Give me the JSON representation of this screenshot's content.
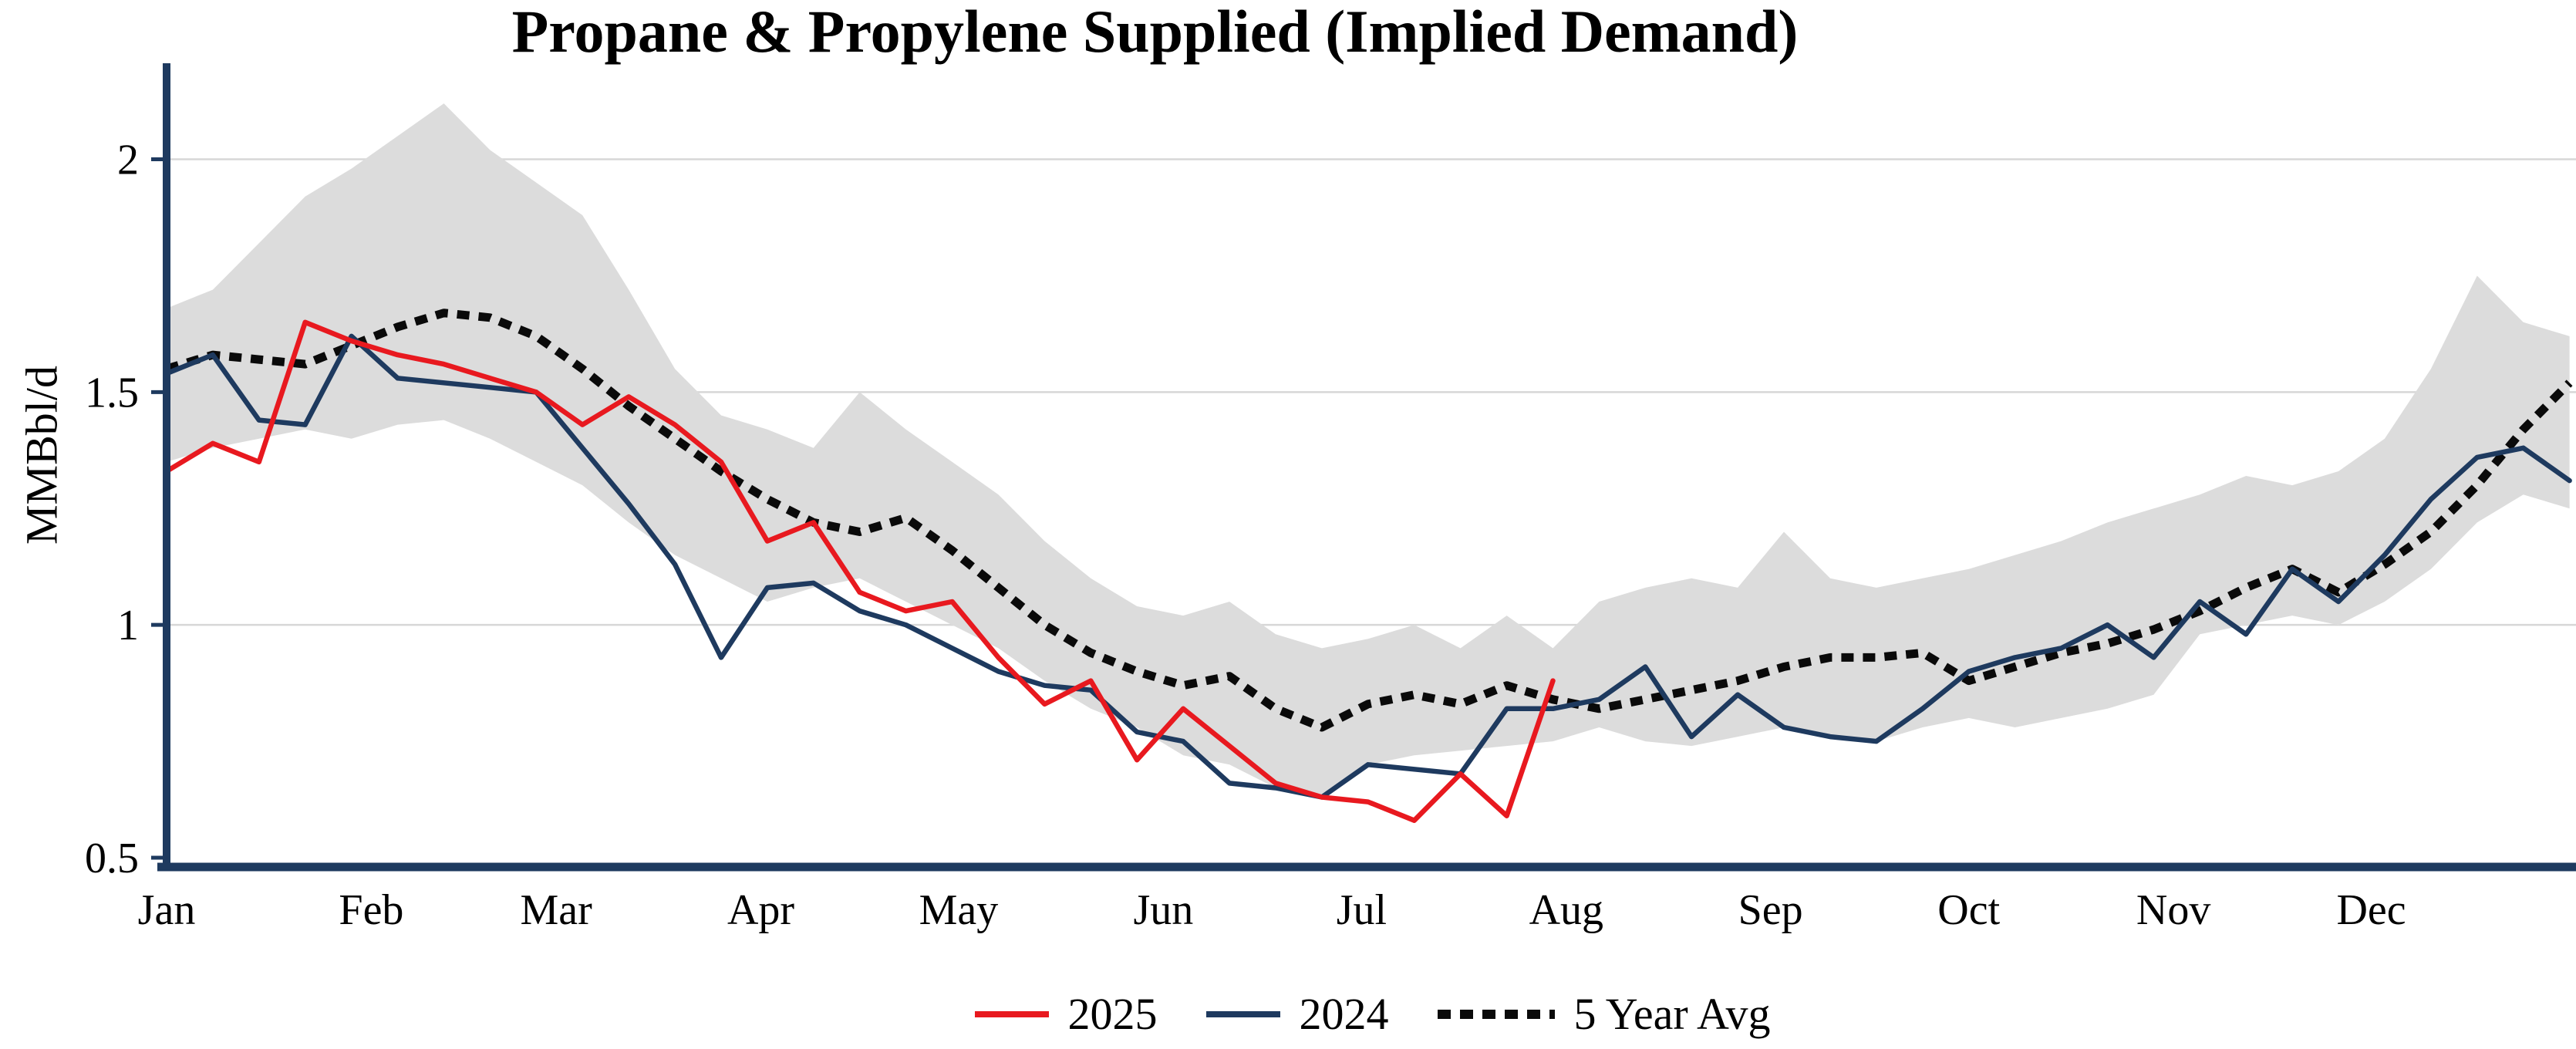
{
  "title": "Propane & Propylene Supplied (Implied Demand)",
  "y_axis": {
    "label": "MMBbl/d"
  },
  "legend": [
    {
      "label": "2025",
      "color": "#e8191f",
      "style": "solid"
    },
    {
      "label": "2024",
      "color": "#1e3a5f",
      "style": "solid"
    },
    {
      "label": "5 Year Avg",
      "color": "#0a0a0a",
      "style": "dotted"
    }
  ],
  "colors": {
    "axis": "#1e3a5f",
    "grid": "#d7d7d7",
    "band": "#dcdcdc",
    "red": "#e8191f",
    "navy": "#1e3a5f",
    "black": "#0a0a0a"
  },
  "chart_data": {
    "type": "line",
    "title": "Propane & Propylene Supplied (Implied Demand)",
    "xlabel": "",
    "ylabel": "MMBbl/d",
    "x_unit": "week_of_year",
    "x_range": [
      0,
      52.14
    ],
    "ylim": [
      0.5,
      2.15
    ],
    "grid": "horizontal",
    "legend_position": "bottom-center",
    "y_ticks": [
      {
        "value": 0.5,
        "label": "0.5"
      },
      {
        "value": 1.0,
        "label": "1"
      },
      {
        "value": 1.5,
        "label": "1.5"
      },
      {
        "value": 2.0,
        "label": "2"
      }
    ],
    "x_ticks": [
      {
        "label": "Jan",
        "week": 0
      },
      {
        "label": "Feb",
        "week": 4.43
      },
      {
        "label": "Mar",
        "week": 8.43
      },
      {
        "label": "Apr",
        "week": 12.86
      },
      {
        "label": "May",
        "week": 17.14
      },
      {
        "label": "Jun",
        "week": 21.57
      },
      {
        "label": "Jul",
        "week": 25.86
      },
      {
        "label": "Aug",
        "week": 30.29
      },
      {
        "label": "Sep",
        "week": 34.71
      },
      {
        "label": "Oct",
        "week": 39.0
      },
      {
        "label": "Nov",
        "week": 43.43
      },
      {
        "label": "Dec",
        "week": 47.71
      }
    ],
    "band": {
      "name": "5 Year Range",
      "upper": [
        1.68,
        1.72,
        1.82,
        1.92,
        1.98,
        2.05,
        2.12,
        2.02,
        1.95,
        1.88,
        1.72,
        1.55,
        1.45,
        1.42,
        1.38,
        1.5,
        1.42,
        1.35,
        1.28,
        1.18,
        1.1,
        1.04,
        1.02,
        1.05,
        0.98,
        0.95,
        0.97,
        1.0,
        0.95,
        1.02,
        0.95,
        1.05,
        1.08,
        1.1,
        1.08,
        1.2,
        1.1,
        1.08,
        1.1,
        1.12,
        1.15,
        1.18,
        1.22,
        1.25,
        1.28,
        1.32,
        1.3,
        1.33,
        1.4,
        1.55,
        1.75,
        1.65,
        1.62
      ],
      "lower": [
        1.35,
        1.38,
        1.4,
        1.42,
        1.4,
        1.43,
        1.44,
        1.4,
        1.35,
        1.3,
        1.22,
        1.15,
        1.1,
        1.05,
        1.08,
        1.1,
        1.05,
        1.0,
        0.95,
        0.88,
        0.82,
        0.78,
        0.72,
        0.7,
        0.65,
        0.63,
        0.7,
        0.72,
        0.73,
        0.74,
        0.75,
        0.78,
        0.75,
        0.74,
        0.76,
        0.78,
        0.76,
        0.75,
        0.78,
        0.8,
        0.78,
        0.8,
        0.82,
        0.85,
        0.98,
        1.0,
        1.02,
        1.0,
        1.05,
        1.12,
        1.22,
        1.28,
        1.25
      ]
    },
    "series": [
      {
        "name": "2025",
        "color": "#e8191f",
        "style": "solid",
        "values": [
          1.33,
          1.39,
          1.35,
          1.65,
          1.61,
          1.58,
          1.56,
          1.53,
          1.5,
          1.43,
          1.49,
          1.43,
          1.35,
          1.18,
          1.22,
          1.07,
          1.03,
          1.05,
          0.93,
          0.83,
          0.88,
          0.71,
          0.82,
          0.74,
          0.66,
          0.63,
          0.62,
          0.58,
          0.68,
          0.59,
          0.88
        ]
      },
      {
        "name": "2024",
        "color": "#1e3a5f",
        "style": "solid",
        "values": [
          1.54,
          1.58,
          1.44,
          1.43,
          1.62,
          1.53,
          1.52,
          1.51,
          1.5,
          1.38,
          1.26,
          1.13,
          0.93,
          1.08,
          1.09,
          1.03,
          1.0,
          0.95,
          0.9,
          0.87,
          0.86,
          0.77,
          0.75,
          0.66,
          0.65,
          0.63,
          0.7,
          0.69,
          0.68,
          0.82,
          0.82,
          0.84,
          0.91,
          0.76,
          0.85,
          0.78,
          0.76,
          0.75,
          0.82,
          0.9,
          0.93,
          0.95,
          1.0,
          0.93,
          1.05,
          0.98,
          1.12,
          1.05,
          1.15,
          1.27,
          1.36,
          1.38,
          1.31
        ]
      },
      {
        "name": "5 Year Avg",
        "color": "#0a0a0a",
        "style": "dotted",
        "values": [
          1.55,
          1.58,
          1.57,
          1.56,
          1.6,
          1.64,
          1.67,
          1.66,
          1.62,
          1.55,
          1.47,
          1.4,
          1.33,
          1.27,
          1.22,
          1.2,
          1.23,
          1.16,
          1.08,
          1.0,
          0.94,
          0.9,
          0.87,
          0.89,
          0.82,
          0.78,
          0.83,
          0.85,
          0.83,
          0.87,
          0.84,
          0.82,
          0.84,
          0.86,
          0.88,
          0.91,
          0.93,
          0.93,
          0.94,
          0.88,
          0.91,
          0.94,
          0.96,
          0.99,
          1.03,
          1.08,
          1.12,
          1.07,
          1.13,
          1.2,
          1.3,
          1.42,
          1.52
        ]
      }
    ]
  }
}
